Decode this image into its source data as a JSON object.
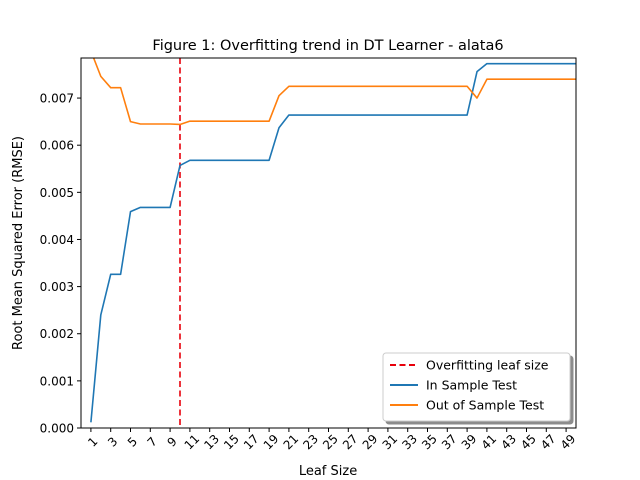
{
  "chart_data": {
    "type": "line",
    "title": "Figure 1: Overfitting trend in DT Learner - alata6",
    "xlabel": "Leaf Size",
    "ylabel": "Root Mean Squared Error (RMSE)",
    "xlim": [
      0,
      50
    ],
    "ylim": [
      0,
      0.00785
    ],
    "x_ticks": [
      1,
      3,
      5,
      7,
      9,
      11,
      13,
      15,
      17,
      19,
      21,
      23,
      25,
      27,
      29,
      31,
      33,
      35,
      37,
      39,
      41,
      43,
      45,
      47,
      49
    ],
    "y_ticks": [
      0.0,
      0.001,
      0.002,
      0.003,
      0.004,
      0.005,
      0.006,
      0.007
    ],
    "y_tick_labels": [
      "0.000",
      "0.001",
      "0.002",
      "0.003",
      "0.004",
      "0.005",
      "0.006",
      "0.007"
    ],
    "grid": false,
    "legend_position": "lower-right",
    "vline": {
      "name": "Overfitting leaf size",
      "x": 10,
      "color": "#e8000b"
    },
    "x": [
      1,
      2,
      3,
      4,
      5,
      6,
      7,
      8,
      9,
      10,
      11,
      12,
      13,
      14,
      15,
      16,
      17,
      18,
      19,
      20,
      21,
      22,
      23,
      24,
      25,
      26,
      27,
      28,
      29,
      30,
      31,
      32,
      33,
      34,
      35,
      36,
      37,
      38,
      39,
      40,
      41,
      42,
      43,
      44,
      45,
      46,
      47,
      48,
      49,
      50
    ],
    "series": [
      {
        "name": "In Sample Test",
        "color": "#1f77b4",
        "values": [
          0.00012,
          0.0024,
          0.00326,
          0.00326,
          0.00459,
          0.00468,
          0.00468,
          0.00468,
          0.00468,
          0.00557,
          0.00568,
          0.00568,
          0.00568,
          0.00568,
          0.00568,
          0.00568,
          0.00568,
          0.00568,
          0.00568,
          0.00637,
          0.00664,
          0.00664,
          0.00664,
          0.00664,
          0.00664,
          0.00664,
          0.00664,
          0.00664,
          0.00664,
          0.00664,
          0.00664,
          0.00664,
          0.00664,
          0.00664,
          0.00664,
          0.00664,
          0.00664,
          0.00664,
          0.00664,
          0.00756,
          0.00773,
          0.00773,
          0.00773,
          0.00773,
          0.00773,
          0.00773,
          0.00773,
          0.00773,
          0.00773,
          0.00773
        ]
      },
      {
        "name": "Out of Sample Test",
        "color": "#ff7f0e",
        "values": [
          0.008,
          0.00746,
          0.00722,
          0.00722,
          0.0065,
          0.00645,
          0.00645,
          0.00645,
          0.00645,
          0.00644,
          0.00651,
          0.00651,
          0.00651,
          0.00651,
          0.00651,
          0.00651,
          0.00651,
          0.00651,
          0.00651,
          0.00705,
          0.00725,
          0.00725,
          0.00725,
          0.00725,
          0.00725,
          0.00725,
          0.00725,
          0.00725,
          0.00725,
          0.00725,
          0.00725,
          0.00725,
          0.00725,
          0.00725,
          0.00725,
          0.00725,
          0.00725,
          0.00725,
          0.00725,
          0.007,
          0.0074,
          0.0074,
          0.0074,
          0.0074,
          0.0074,
          0.0074,
          0.0074,
          0.0074,
          0.0074,
          0.0074
        ]
      }
    ]
  }
}
